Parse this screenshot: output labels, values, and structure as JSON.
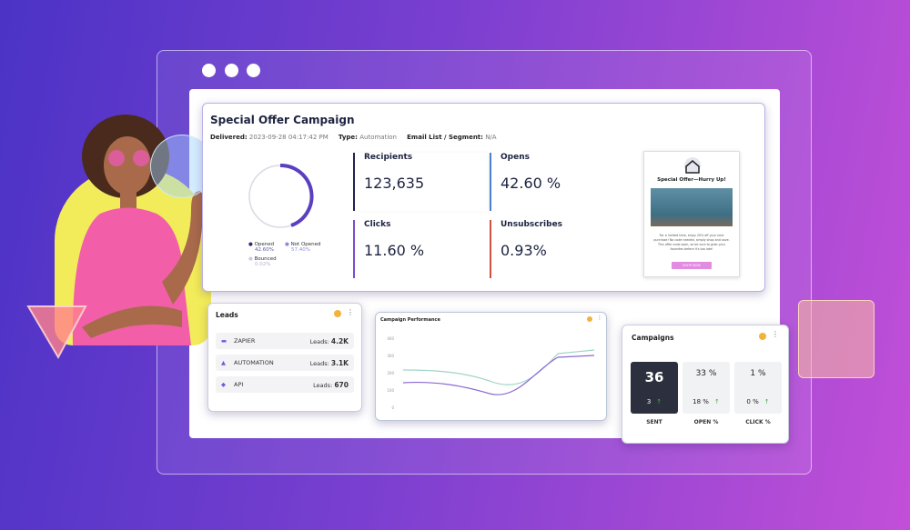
{
  "campaign": {
    "title": "Special Offer Campaign",
    "delivered_label": "Delivered:",
    "delivered": "2023-09-28 04:17:42 PM",
    "type_label": "Type:",
    "type": "Automation",
    "list_label": "Email List / Segment:",
    "list": "N/A",
    "legend": [
      {
        "label": "Opened",
        "value": "42.60%"
      },
      {
        "label": "Not Opened",
        "value": "57.40%"
      },
      {
        "label": "Bounced",
        "value": "0.02%"
      }
    ],
    "stats": [
      {
        "label": "Recipients",
        "value": "123,635"
      },
      {
        "label": "Opens",
        "value": "42.60 %"
      },
      {
        "label": "Clicks",
        "value": "11.60 %"
      },
      {
        "label": "Unsubscribes",
        "value": "0.93%"
      }
    ],
    "email_preview": {
      "heading": "Special Offer—Hurry Up!",
      "body": "For a limited time, enjoy 20% off your next purchase! No code needed, simply shop and save. This offer ends soon, so be sure to grab your favorites before it's too late!",
      "button": "SHOP NOW"
    }
  },
  "leads": {
    "title": "Leads",
    "rows": [
      {
        "name": "ZAPIER",
        "label": "Leads:",
        "value": "4.2K"
      },
      {
        "name": "AUTOMATION",
        "label": "Leads:",
        "value": "3.1K"
      },
      {
        "name": "API",
        "label": "Leads:",
        "value": "670"
      }
    ]
  },
  "performance": {
    "title": "Campaign Performance",
    "yticks": [
      "400",
      "300",
      "200",
      "100",
      "0"
    ]
  },
  "campaigns": {
    "title": "Campaigns",
    "cards": [
      {
        "big": "36",
        "small": "3",
        "label": "SENT"
      },
      {
        "big": "33 %",
        "small": "18 %",
        "label": "OPEN %"
      },
      {
        "big": "1 %",
        "small": "0 %",
        "label": "CLICK %"
      }
    ]
  }
}
